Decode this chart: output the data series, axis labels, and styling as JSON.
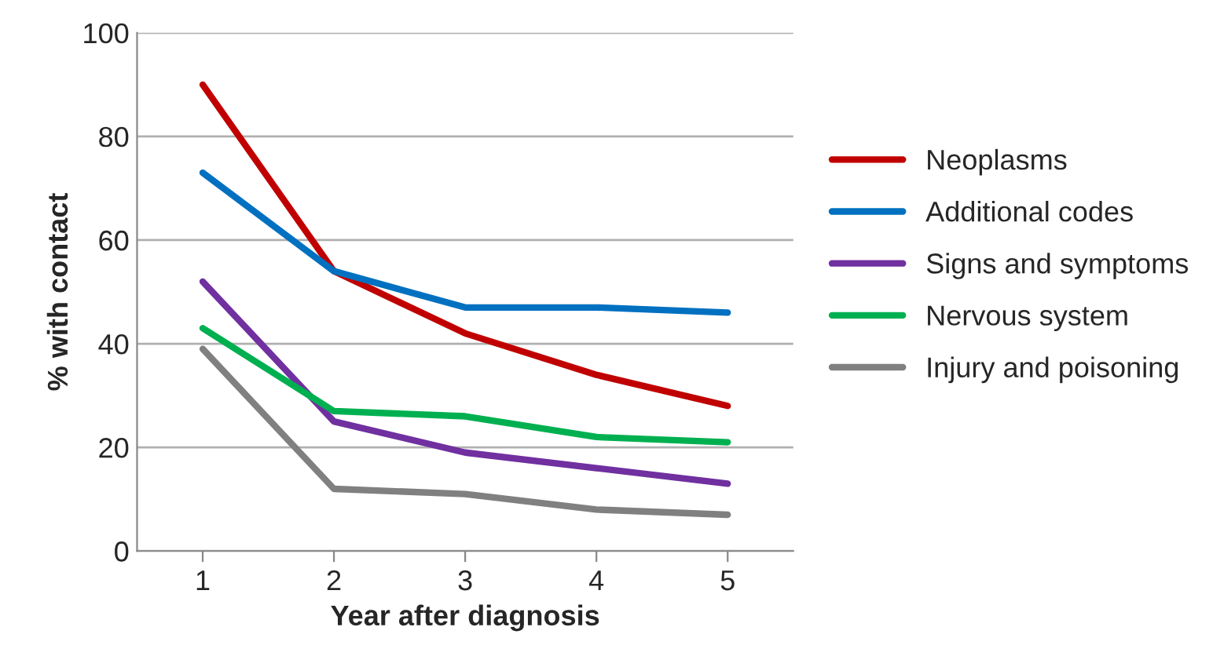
{
  "chart_data": {
    "type": "line",
    "xlabel": "Year after diagnosis",
    "ylabel": "% with contact",
    "categories": [
      "1",
      "2",
      "3",
      "4",
      "5"
    ],
    "series": [
      {
        "name": "Neoplasms",
        "color": "#c00000",
        "values": [
          90,
          54,
          42,
          34,
          28
        ]
      },
      {
        "name": "Additional codes",
        "color": "#0070c0",
        "values": [
          73,
          54,
          47,
          47,
          46
        ]
      },
      {
        "name": "Signs and symptoms",
        "color": "#7030a0",
        "values": [
          52,
          25,
          19,
          16,
          13
        ]
      },
      {
        "name": "Nervous system",
        "color": "#00b050",
        "values": [
          43,
          27,
          26,
          22,
          21
        ]
      },
      {
        "name": "Injury and poisoning",
        "color": "#808080",
        "values": [
          39,
          12,
          11,
          8,
          7
        ]
      }
    ],
    "ylim": [
      0,
      100
    ],
    "yticks": [
      0,
      20,
      40,
      60,
      80,
      100
    ],
    "grid": "y",
    "legend": "right",
    "marker": "none",
    "line_style": "solid"
  }
}
